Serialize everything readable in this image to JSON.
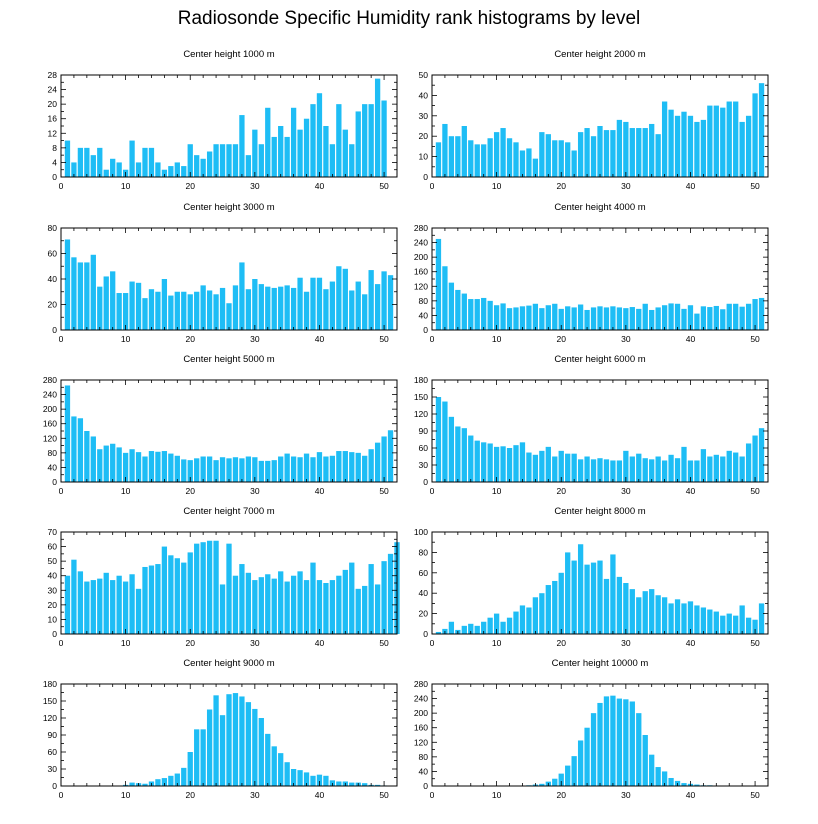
{
  "title": "Radiosonde Specific Humidity rank histograms by level",
  "colors": {
    "bar": "#1ebdf5",
    "frame": "#000000",
    "background": "#ffffff"
  },
  "chart_data": [
    {
      "type": "bar",
      "title": "Center height 1000 m",
      "xlim": [
        0,
        52
      ],
      "xticks": [
        0,
        10,
        20,
        30,
        40,
        50
      ],
      "ylim": [
        0,
        28
      ],
      "yticks": [
        0,
        4,
        8,
        12,
        16,
        20,
        24,
        28
      ],
      "values": [
        10,
        4,
        8,
        8,
        6,
        8,
        2,
        5,
        4,
        2,
        10,
        4,
        8,
        8,
        4,
        2,
        3,
        4,
        3,
        9,
        6,
        5,
        7,
        9,
        9,
        9,
        9,
        17,
        6,
        13,
        9,
        19,
        11,
        14,
        11,
        19,
        13,
        16,
        20,
        23,
        14,
        9,
        20,
        13,
        9,
        18,
        20,
        20,
        27,
        21
      ]
    },
    {
      "type": "bar",
      "title": "Center height 2000 m",
      "xlim": [
        0,
        52
      ],
      "xticks": [
        0,
        10,
        20,
        30,
        40,
        50
      ],
      "ylim": [
        0,
        50
      ],
      "yticks": [
        0,
        10,
        20,
        30,
        40,
        50
      ],
      "values": [
        17,
        26,
        20,
        20,
        25,
        18,
        16,
        16,
        19,
        22,
        24,
        19,
        17,
        13,
        14,
        9,
        22,
        21,
        18,
        18,
        17,
        13,
        22,
        24,
        20,
        25,
        23,
        23,
        28,
        27,
        24,
        24,
        24,
        26,
        21,
        37,
        33,
        30,
        32,
        30,
        27,
        28,
        35,
        35,
        34,
        37,
        37,
        27,
        30,
        41,
        46
      ]
    },
    {
      "type": "bar",
      "title": "Center height 3000 m",
      "xlim": [
        0,
        52
      ],
      "xticks": [
        0,
        10,
        20,
        30,
        40,
        50
      ],
      "ylim": [
        0,
        80
      ],
      "yticks": [
        0,
        20,
        40,
        60,
        80
      ],
      "values": [
        71,
        57,
        53,
        53,
        59,
        34,
        42,
        46,
        29,
        29,
        38,
        37,
        25,
        32,
        30,
        40,
        27,
        30,
        30,
        28,
        30,
        35,
        31,
        28,
        33,
        21,
        35,
        53,
        32,
        40,
        36,
        34,
        33,
        34,
        35,
        33,
        41,
        30,
        41,
        41,
        32,
        38,
        50,
        48,
        31,
        38,
        28,
        47,
        36,
        46,
        43
      ]
    },
    {
      "type": "bar",
      "title": "Center height 4000 m",
      "xlim": [
        0,
        52
      ],
      "xticks": [
        0,
        10,
        20,
        30,
        40,
        50
      ],
      "ylim": [
        0,
        280
      ],
      "yticks": [
        0,
        40,
        80,
        120,
        160,
        200,
        240,
        280
      ],
      "values": [
        250,
        175,
        130,
        110,
        100,
        85,
        85,
        88,
        80,
        68,
        73,
        60,
        62,
        65,
        67,
        72,
        60,
        68,
        72,
        58,
        65,
        62,
        70,
        55,
        62,
        65,
        62,
        65,
        62,
        60,
        63,
        58,
        72,
        55,
        62,
        68,
        73,
        72,
        58,
        68,
        45,
        65,
        63,
        66,
        57,
        72,
        72,
        64,
        72,
        85,
        88
      ]
    },
    {
      "type": "bar",
      "title": "Center height 5000 m",
      "xlim": [
        0,
        52
      ],
      "xticks": [
        0,
        10,
        20,
        30,
        40,
        50
      ],
      "ylim": [
        0,
        280
      ],
      "yticks": [
        0,
        40,
        80,
        120,
        160,
        200,
        240,
        280
      ],
      "values": [
        265,
        180,
        175,
        140,
        125,
        90,
        100,
        105,
        95,
        80,
        90,
        82,
        70,
        85,
        83,
        85,
        78,
        72,
        62,
        60,
        65,
        70,
        70,
        60,
        68,
        65,
        68,
        65,
        70,
        68,
        58,
        58,
        60,
        70,
        78,
        70,
        68,
        78,
        68,
        82,
        70,
        72,
        85,
        85,
        82,
        80,
        72,
        90,
        108,
        125,
        142
      ]
    },
    {
      "type": "bar",
      "title": "Center height 6000 m",
      "xlim": [
        0,
        52
      ],
      "xticks": [
        0,
        10,
        20,
        30,
        40,
        50
      ],
      "ylim": [
        0,
        180
      ],
      "yticks": [
        0,
        30,
        60,
        90,
        120,
        150,
        180
      ],
      "values": [
        150,
        142,
        115,
        98,
        95,
        82,
        73,
        70,
        68,
        62,
        63,
        60,
        65,
        70,
        52,
        48,
        55,
        62,
        45,
        55,
        50,
        50,
        40,
        45,
        40,
        42,
        40,
        38,
        38,
        55,
        45,
        50,
        42,
        40,
        45,
        38,
        48,
        42,
        62,
        38,
        38,
        58,
        45,
        48,
        45,
        55,
        52,
        45,
        68,
        82,
        95
      ]
    },
    {
      "type": "bar",
      "title": "Center height 7000 m",
      "xlim": [
        0,
        52
      ],
      "xticks": [
        0,
        10,
        20,
        30,
        40,
        50
      ],
      "ylim": [
        0,
        70
      ],
      "yticks": [
        0,
        10,
        20,
        30,
        40,
        50,
        60,
        70
      ],
      "values": [
        40,
        51,
        43,
        36,
        37,
        38,
        42,
        37,
        40,
        36,
        41,
        31,
        46,
        47,
        48,
        60,
        54,
        52,
        49,
        56,
        62,
        63,
        64,
        64,
        34,
        62,
        40,
        48,
        42,
        37,
        39,
        41,
        38,
        43,
        36,
        40,
        43,
        37,
        49,
        37,
        35,
        37,
        40,
        44,
        49,
        31,
        33,
        48,
        34,
        50,
        55,
        63
      ]
    },
    {
      "type": "bar",
      "title": "Center height 8000 m",
      "xlim": [
        0,
        52
      ],
      "xticks": [
        0,
        10,
        20,
        30,
        40,
        50
      ],
      "ylim": [
        0,
        100
      ],
      "yticks": [
        0,
        20,
        40,
        60,
        80,
        100
      ],
      "values": [
        2,
        5,
        12,
        4,
        8,
        10,
        8,
        12,
        16,
        20,
        12,
        16,
        22,
        28,
        26,
        36,
        40,
        48,
        52,
        60,
        80,
        72,
        88,
        68,
        70,
        72,
        54,
        78,
        56,
        50,
        44,
        36,
        42,
        44,
        38,
        36,
        30,
        34,
        30,
        32,
        28,
        26,
        24,
        22,
        18,
        20,
        18,
        28,
        16,
        14,
        30
      ]
    },
    {
      "type": "bar",
      "title": "Center height 9000 m",
      "xlim": [
        0,
        52
      ],
      "xticks": [
        0,
        10,
        20,
        30,
        40,
        50
      ],
      "ylim": [
        0,
        180
      ],
      "yticks": [
        0,
        30,
        60,
        90,
        120,
        150,
        180
      ],
      "values": [
        0,
        0,
        0,
        0,
        0,
        0,
        0,
        0,
        0,
        2,
        6,
        5,
        4,
        8,
        12,
        14,
        18,
        22,
        32,
        60,
        100,
        100,
        135,
        160,
        125,
        162,
        164,
        158,
        148,
        136,
        120,
        92,
        70,
        58,
        42,
        30,
        28,
        24,
        18,
        20,
        18,
        10,
        8,
        8,
        6,
        6,
        5,
        2,
        2,
        1,
        0
      ]
    },
    {
      "type": "bar",
      "title": "Center height 10000 m",
      "xlim": [
        0,
        52
      ],
      "xticks": [
        0,
        10,
        20,
        30,
        40,
        50
      ],
      "ylim": [
        0,
        280
      ],
      "yticks": [
        0,
        40,
        80,
        120,
        160,
        200,
        240,
        280
      ],
      "values": [
        0,
        0,
        0,
        0,
        0,
        0,
        0,
        0,
        0,
        0,
        0,
        0,
        0,
        0,
        2,
        4,
        6,
        12,
        20,
        34,
        56,
        82,
        125,
        160,
        200,
        228,
        246,
        248,
        240,
        238,
        232,
        200,
        140,
        86,
        52,
        40,
        22,
        14,
        8,
        6,
        4,
        2,
        2,
        1,
        1,
        0,
        0,
        0,
        0,
        0,
        0
      ]
    }
  ]
}
